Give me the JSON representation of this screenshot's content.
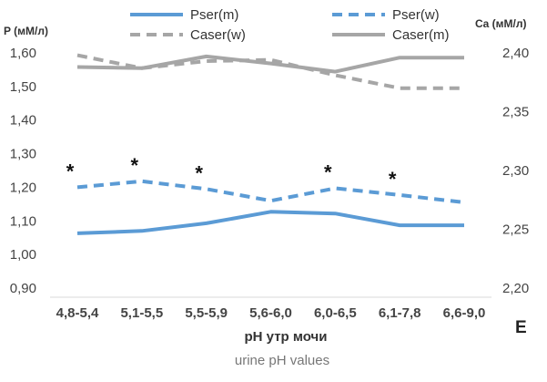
{
  "chart_data": {
    "type": "line",
    "panel_label": "E",
    "categories": [
      "4,8-5,4",
      "5,1-5,5",
      "5,5-5,9",
      "5,6-6,0",
      "6,0-6,5",
      "6,1-7,8",
      "6,6-9,0"
    ],
    "xlabel": "pH утр мочи",
    "xlabel_en": "urine pH values",
    "left_axis": {
      "title": "P (мМ/л)",
      "min": 0.9,
      "max": 1.6,
      "ticks": [
        "0,90",
        "1,00",
        "1,10",
        "1,20",
        "1,30",
        "1,40",
        "1,50",
        "1,60"
      ],
      "tick_values": [
        0.9,
        1.0,
        1.1,
        1.2,
        1.3,
        1.4,
        1.5,
        1.6
      ]
    },
    "right_axis": {
      "title": "Ca (мМ/л)",
      "min": 2.2,
      "max": 2.4,
      "ticks": [
        "2,20",
        "2,25",
        "2,30",
        "2,35",
        "2,40"
      ],
      "tick_values": [
        2.2,
        2.25,
        2.3,
        2.35,
        2.4
      ]
    },
    "series": [
      {
        "name": "Pser(m)",
        "axis": "left",
        "style": "solid",
        "color": "#5b9bd5",
        "values": [
          1.063,
          1.07,
          1.093,
          1.127,
          1.122,
          1.087,
          1.087
        ]
      },
      {
        "name": "Pser(w)",
        "axis": "left",
        "style": "dashed",
        "color": "#5b9bd5",
        "values": [
          1.2,
          1.218,
          1.195,
          1.16,
          1.197,
          1.177,
          1.155
        ]
      },
      {
        "name": "Caser(w)",
        "axis": "right",
        "style": "dashed",
        "color": "#a6a6a6",
        "values": [
          2.398,
          2.387,
          2.393,
          2.394,
          2.381,
          2.37,
          2.37
        ]
      },
      {
        "name": "Caser(m)",
        "axis": "right",
        "style": "solid",
        "color": "#a6a6a6",
        "values": [
          2.388,
          2.387,
          2.397,
          2.391,
          2.384,
          2.396,
          2.396
        ]
      }
    ],
    "annotations": [
      {
        "text": "*",
        "category_index": 0
      },
      {
        "text": "*",
        "category_index": 1
      },
      {
        "text": "*",
        "category_index": 2
      },
      {
        "text": "*",
        "category_index": 4
      },
      {
        "text": "*",
        "category_index": 5
      }
    ],
    "legend": {
      "placement": "top",
      "entries": [
        "Pser(m)",
        "Pser(w)",
        "Caser(w)",
        "Caser(m)"
      ]
    },
    "grid": false
  }
}
